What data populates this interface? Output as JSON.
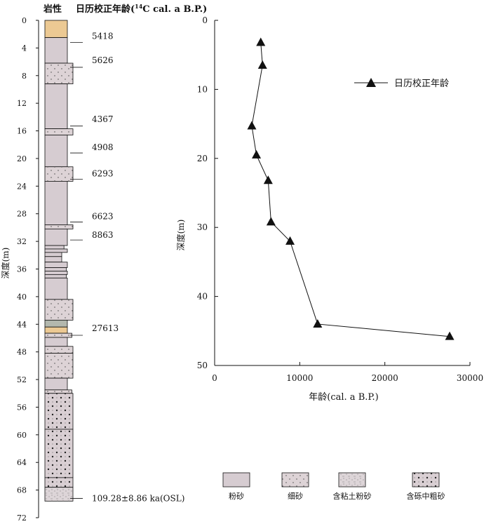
{
  "strat_column": {
    "header_left": "岩性",
    "header_right_prefix": "日历校正年龄(",
    "header_right_sup": "14",
    "header_right_suffix": "C cal. a B.P.)",
    "axis_label": "深度(m)",
    "depth_ticks": [
      0,
      4,
      8,
      12,
      16,
      20,
      24,
      28,
      32,
      36,
      40,
      44,
      48,
      52,
      56,
      60,
      64,
      68,
      72
    ],
    "layers": [
      {
        "top": 0,
        "bottom": 2.5,
        "type": "orange"
      },
      {
        "top": 2.5,
        "bottom": 6.2,
        "type": "silt"
      },
      {
        "top": 6.2,
        "bottom": 9.2,
        "type": "fine_sand"
      },
      {
        "top": 9.2,
        "bottom": 15.7,
        "type": "silt"
      },
      {
        "top": 15.7,
        "bottom": 16.6,
        "type": "fine_sand"
      },
      {
        "top": 16.6,
        "bottom": 21.2,
        "type": "silt"
      },
      {
        "top": 21.2,
        "bottom": 23.3,
        "type": "fine_sand"
      },
      {
        "top": 23.3,
        "bottom": 29.6,
        "type": "silt"
      },
      {
        "top": 29.6,
        "bottom": 30.2,
        "type": "fine_sand"
      },
      {
        "top": 30.2,
        "bottom": 32.6,
        "type": "silt"
      },
      {
        "top": 32.6,
        "bottom": 33.1,
        "type": "silt"
      },
      {
        "top": 33.1,
        "bottom": 33.6,
        "type": "silt"
      },
      {
        "top": 33.6,
        "bottom": 34.2,
        "type": "silt"
      },
      {
        "top": 34.2,
        "bottom": 35.0,
        "type": "silt"
      },
      {
        "top": 35.0,
        "bottom": 35.8,
        "type": "silt"
      },
      {
        "top": 35.8,
        "bottom": 36.3,
        "type": "silt"
      },
      {
        "top": 36.3,
        "bottom": 36.8,
        "type": "silt"
      },
      {
        "top": 36.8,
        "bottom": 37.3,
        "type": "silt"
      },
      {
        "top": 37.3,
        "bottom": 40.4,
        "type": "silt"
      },
      {
        "top": 40.4,
        "bottom": 43.4,
        "type": "fine_sand"
      },
      {
        "top": 43.4,
        "bottom": 44.4,
        "type": "gray_green"
      },
      {
        "top": 44.4,
        "bottom": 45.3,
        "type": "orange"
      },
      {
        "top": 45.3,
        "bottom": 45.9,
        "type": "fine_sand"
      },
      {
        "top": 45.9,
        "bottom": 47.2,
        "type": "silt"
      },
      {
        "top": 47.2,
        "bottom": 48.2,
        "type": "fine_sand"
      },
      {
        "top": 48.2,
        "bottom": 51.8,
        "type": "fine_sand"
      },
      {
        "top": 51.8,
        "bottom": 53.5,
        "type": "silt"
      },
      {
        "top": 53.5,
        "bottom": 54.0,
        "type": "fine_sand"
      },
      {
        "top": 54.0,
        "bottom": 59.2,
        "type": "gravelly_sand"
      },
      {
        "top": 59.2,
        "bottom": 66.2,
        "type": "gravelly_sand"
      },
      {
        "top": 66.2,
        "bottom": 67.6,
        "type": "gravelly_sand"
      },
      {
        "top": 67.6,
        "bottom": 69.6,
        "type": "clayey_silt"
      }
    ],
    "narrow_layers": [
      {
        "top": 32.6,
        "bottom": 33.1,
        "width_frac": 0.85
      },
      {
        "top": 33.1,
        "bottom": 33.6,
        "width_frac": 1.0
      },
      {
        "top": 33.6,
        "bottom": 34.2,
        "width_frac": 0.75
      },
      {
        "top": 34.2,
        "bottom": 35.0,
        "width_frac": 0.75
      },
      {
        "top": 35.8,
        "bottom": 36.3,
        "width_frac": 0.95
      },
      {
        "top": 36.8,
        "bottom": 37.3,
        "width_frac": 0.95
      },
      {
        "top": 45.3,
        "bottom": 45.9,
        "width_frac": 1.2
      },
      {
        "top": 53.5,
        "bottom": 54.0,
        "width_frac": 1.2
      }
    ],
    "ages": [
      {
        "label": "5418",
        "depth": 3.2,
        "label_depth": 2.3
      },
      {
        "label": "5626",
        "depth": 6.8,
        "label_depth": 5.8
      },
      {
        "label": "4367",
        "depth": 15.3,
        "label_depth": 14.3
      },
      {
        "label": "4908",
        "depth": 19.2,
        "label_depth": 18.4
      },
      {
        "label": "6293",
        "depth": 23.0,
        "label_depth": 22.2
      },
      {
        "label": "6623",
        "depth": 29.2,
        "label_depth": 28.4
      },
      {
        "label": "8863",
        "depth": 31.8,
        "label_depth": 31.1
      },
      {
        "label": "27613",
        "depth": 45.6,
        "label_depth": 44.6
      },
      {
        "label": "109.28±8.86 ka(OSL)",
        "depth": 69.2,
        "label_depth": 69.2
      }
    ]
  },
  "chart_data": {
    "type": "line",
    "title": "",
    "xlabel": "年龄(cal. a B.P.)",
    "ylabel": "深度(m)",
    "xlim": [
      0,
      30000
    ],
    "ylim": [
      0,
      50
    ],
    "y_inverted": true,
    "x_ticks": [
      0,
      10000,
      20000,
      30000
    ],
    "y_ticks": [
      0,
      10,
      20,
      30,
      40,
      50
    ],
    "marker": "triangle",
    "series": [
      {
        "name": "日历校正年龄",
        "x": [
          5418,
          5626,
          4367,
          4908,
          6293,
          6623,
          8863,
          12100,
          27613
        ],
        "y": [
          3.2,
          6.5,
          15.3,
          19.5,
          23.2,
          29.2,
          32.0,
          44.0,
          45.8
        ]
      }
    ],
    "legend_position": "top-right"
  },
  "legend": {
    "items": [
      {
        "label": "粉砂",
        "type": "silt"
      },
      {
        "label": "细砂",
        "type": "fine_sand"
      },
      {
        "label": "含粘土粉砂",
        "type": "clayey_silt"
      },
      {
        "label": "含砾中粗砂",
        "type": "gravelly_sand"
      }
    ]
  },
  "colors": {
    "silt": "#d6ccd1",
    "fine_sand": "#ddd3d6",
    "clayey_silt": "#ddd5d8",
    "gravelly_sand": "#d9cfd3",
    "orange": "#ecc993",
    "gray_green": "#b3b8ae",
    "line": "#111111"
  }
}
